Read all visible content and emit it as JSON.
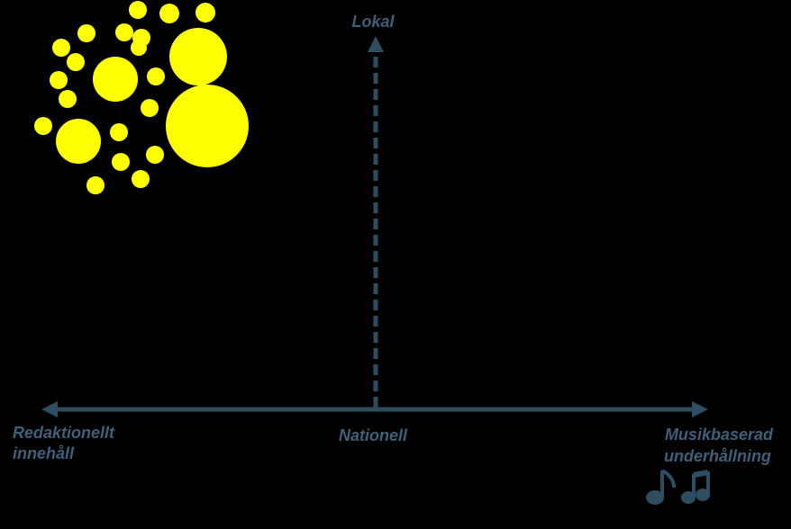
{
  "axes": {
    "top": "Lokal",
    "left": [
      "Redaktionellt",
      "innehåll"
    ],
    "center": "Nationell",
    "right": [
      "Musikbaserad",
      "underhållning"
    ]
  }
}
